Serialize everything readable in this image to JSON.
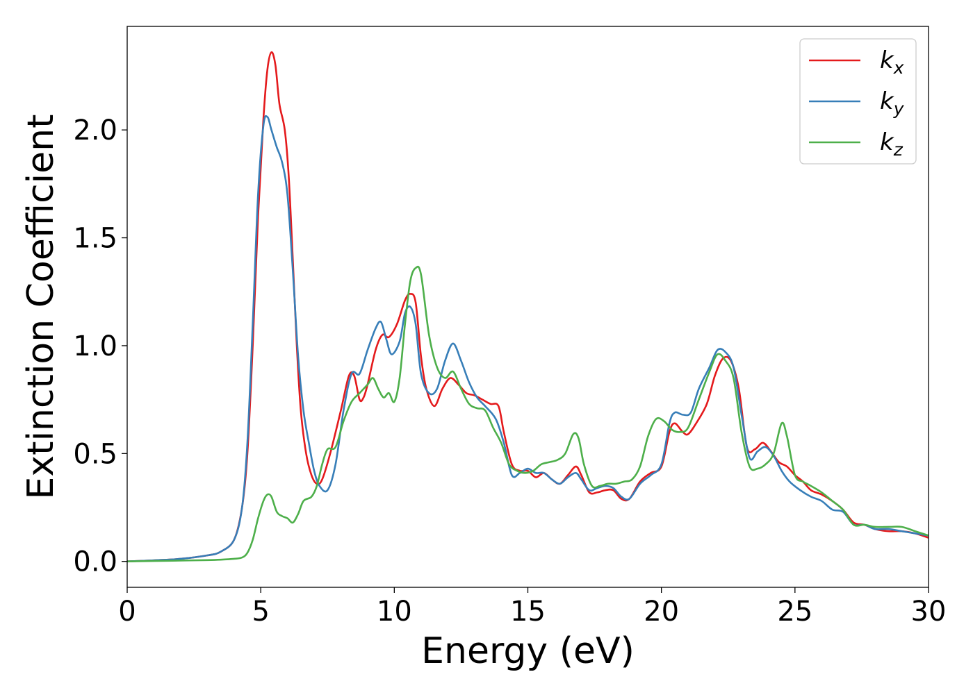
{
  "chart_data": {
    "type": "line",
    "title": "",
    "xlabel": "Energy (eV)",
    "ylabel": "Extinction Coefficient",
    "xlim": [
      0,
      30
    ],
    "ylim": [
      -0.12,
      2.48
    ],
    "xticks": [
      0,
      5,
      10,
      15,
      20,
      25,
      30
    ],
    "xtick_labels": [
      "0",
      "5",
      "10",
      "15",
      "20",
      "25",
      "30"
    ],
    "yticks": [
      0.0,
      0.5,
      1.0,
      1.5,
      2.0
    ],
    "ytick_labels": [
      "0.0",
      "0.5",
      "1.0",
      "1.5",
      "2.0"
    ],
    "grid": false,
    "legend": {
      "position": "top-right",
      "entries": [
        {
          "base": "k",
          "sub": "x"
        },
        {
          "base": "k",
          "sub": "y"
        },
        {
          "base": "k",
          "sub": "z"
        }
      ]
    },
    "series": [
      {
        "name": "k_x",
        "color": "#e41a1c",
        "points": [
          [
            0,
            0
          ],
          [
            1,
            0.005
          ],
          [
            2,
            0.012
          ],
          [
            3,
            0.028
          ],
          [
            3.5,
            0.045
          ],
          [
            4,
            0.1
          ],
          [
            4.3,
            0.25
          ],
          [
            4.5,
            0.5
          ],
          [
            4.7,
            1.0
          ],
          [
            4.9,
            1.6
          ],
          [
            5.1,
            2.05
          ],
          [
            5.25,
            2.28
          ],
          [
            5.4,
            2.36
          ],
          [
            5.55,
            2.3
          ],
          [
            5.7,
            2.12
          ],
          [
            5.9,
            2.0
          ],
          [
            6.05,
            1.78
          ],
          [
            6.2,
            1.4
          ],
          [
            6.35,
            1.0
          ],
          [
            6.5,
            0.7
          ],
          [
            6.7,
            0.5
          ],
          [
            6.9,
            0.4
          ],
          [
            7.1,
            0.36
          ],
          [
            7.3,
            0.38
          ],
          [
            7.6,
            0.5
          ],
          [
            8.0,
            0.7
          ],
          [
            8.3,
            0.86
          ],
          [
            8.5,
            0.86
          ],
          [
            8.7,
            0.75
          ],
          [
            8.85,
            0.76
          ],
          [
            9.0,
            0.82
          ],
          [
            9.3,
            0.98
          ],
          [
            9.55,
            1.05
          ],
          [
            9.8,
            1.04
          ],
          [
            10.1,
            1.1
          ],
          [
            10.4,
            1.21
          ],
          [
            10.6,
            1.24
          ],
          [
            10.8,
            1.2
          ],
          [
            11.0,
            0.95
          ],
          [
            11.2,
            0.8
          ],
          [
            11.5,
            0.72
          ],
          [
            11.8,
            0.8
          ],
          [
            12.1,
            0.85
          ],
          [
            12.4,
            0.82
          ],
          [
            12.7,
            0.78
          ],
          [
            13.0,
            0.77
          ],
          [
            13.3,
            0.75
          ],
          [
            13.6,
            0.73
          ],
          [
            13.9,
            0.72
          ],
          [
            14.1,
            0.6
          ],
          [
            14.4,
            0.45
          ],
          [
            14.7,
            0.42
          ],
          [
            15.0,
            0.42
          ],
          [
            15.3,
            0.39
          ],
          [
            15.6,
            0.41
          ],
          [
            15.9,
            0.38
          ],
          [
            16.2,
            0.36
          ],
          [
            16.5,
            0.4
          ],
          [
            16.8,
            0.44
          ],
          [
            17.0,
            0.4
          ],
          [
            17.3,
            0.32
          ],
          [
            17.6,
            0.32
          ],
          [
            17.9,
            0.33
          ],
          [
            18.2,
            0.33
          ],
          [
            18.5,
            0.29
          ],
          [
            18.8,
            0.29
          ],
          [
            19.2,
            0.37
          ],
          [
            19.6,
            0.41
          ],
          [
            20.0,
            0.44
          ],
          [
            20.3,
            0.6
          ],
          [
            20.5,
            0.64
          ],
          [
            20.8,
            0.6
          ],
          [
            21.0,
            0.59
          ],
          [
            21.3,
            0.64
          ],
          [
            21.7,
            0.73
          ],
          [
            22.0,
            0.86
          ],
          [
            22.3,
            0.94
          ],
          [
            22.6,
            0.93
          ],
          [
            22.9,
            0.8
          ],
          [
            23.2,
            0.53
          ],
          [
            23.5,
            0.52
          ],
          [
            23.8,
            0.55
          ],
          [
            24.1,
            0.51
          ],
          [
            24.4,
            0.46
          ],
          [
            24.7,
            0.44
          ],
          [
            25.0,
            0.4
          ],
          [
            25.3,
            0.37
          ],
          [
            25.6,
            0.33
          ],
          [
            26.0,
            0.31
          ],
          [
            26.4,
            0.28
          ],
          [
            26.8,
            0.24
          ],
          [
            27.2,
            0.18
          ],
          [
            27.6,
            0.17
          ],
          [
            28.0,
            0.15
          ],
          [
            28.5,
            0.14
          ],
          [
            29.0,
            0.14
          ],
          [
            29.5,
            0.13
          ],
          [
            30,
            0.11
          ]
        ]
      },
      {
        "name": "k_y",
        "color": "#377eb8",
        "points": [
          [
            0,
            0
          ],
          [
            1,
            0.005
          ],
          [
            2,
            0.012
          ],
          [
            3,
            0.028
          ],
          [
            3.5,
            0.045
          ],
          [
            4,
            0.1
          ],
          [
            4.3,
            0.25
          ],
          [
            4.5,
            0.55
          ],
          [
            4.7,
            1.1
          ],
          [
            4.9,
            1.7
          ],
          [
            5.1,
            2.02
          ],
          [
            5.25,
            2.06
          ],
          [
            5.4,
            2.0
          ],
          [
            5.6,
            1.92
          ],
          [
            5.8,
            1.85
          ],
          [
            6.0,
            1.7
          ],
          [
            6.2,
            1.35
          ],
          [
            6.4,
            0.95
          ],
          [
            6.6,
            0.7
          ],
          [
            6.8,
            0.55
          ],
          [
            7.0,
            0.42
          ],
          [
            7.2,
            0.35
          ],
          [
            7.5,
            0.33
          ],
          [
            7.8,
            0.45
          ],
          [
            8.1,
            0.7
          ],
          [
            8.4,
            0.87
          ],
          [
            8.7,
            0.87
          ],
          [
            9.0,
            0.98
          ],
          [
            9.3,
            1.08
          ],
          [
            9.5,
            1.11
          ],
          [
            9.7,
            1.03
          ],
          [
            9.9,
            0.96
          ],
          [
            10.2,
            1.02
          ],
          [
            10.4,
            1.15
          ],
          [
            10.6,
            1.18
          ],
          [
            10.8,
            1.1
          ],
          [
            11.0,
            0.87
          ],
          [
            11.3,
            0.78
          ],
          [
            11.6,
            0.8
          ],
          [
            11.9,
            0.93
          ],
          [
            12.2,
            1.01
          ],
          [
            12.5,
            0.93
          ],
          [
            12.8,
            0.83
          ],
          [
            13.1,
            0.76
          ],
          [
            13.4,
            0.72
          ],
          [
            13.8,
            0.66
          ],
          [
            14.1,
            0.55
          ],
          [
            14.4,
            0.4
          ],
          [
            14.7,
            0.41
          ],
          [
            15.0,
            0.43
          ],
          [
            15.3,
            0.41
          ],
          [
            15.6,
            0.41
          ],
          [
            15.9,
            0.38
          ],
          [
            16.2,
            0.36
          ],
          [
            16.5,
            0.39
          ],
          [
            16.8,
            0.41
          ],
          [
            17.0,
            0.38
          ],
          [
            17.3,
            0.33
          ],
          [
            17.6,
            0.34
          ],
          [
            17.9,
            0.35
          ],
          [
            18.2,
            0.34
          ],
          [
            18.5,
            0.3
          ],
          [
            18.8,
            0.29
          ],
          [
            19.2,
            0.36
          ],
          [
            19.6,
            0.4
          ],
          [
            20.0,
            0.45
          ],
          [
            20.3,
            0.64
          ],
          [
            20.5,
            0.69
          ],
          [
            20.8,
            0.68
          ],
          [
            21.1,
            0.69
          ],
          [
            21.4,
            0.8
          ],
          [
            21.8,
            0.9
          ],
          [
            22.1,
            0.98
          ],
          [
            22.4,
            0.97
          ],
          [
            22.7,
            0.9
          ],
          [
            23.0,
            0.68
          ],
          [
            23.3,
            0.48
          ],
          [
            23.6,
            0.51
          ],
          [
            23.9,
            0.53
          ],
          [
            24.2,
            0.49
          ],
          [
            24.5,
            0.42
          ],
          [
            24.8,
            0.37
          ],
          [
            25.2,
            0.33
          ],
          [
            25.6,
            0.3
          ],
          [
            26.0,
            0.28
          ],
          [
            26.4,
            0.24
          ],
          [
            26.8,
            0.23
          ],
          [
            27.2,
            0.17
          ],
          [
            27.6,
            0.17
          ],
          [
            28.0,
            0.15
          ],
          [
            28.5,
            0.15
          ],
          [
            29.0,
            0.14
          ],
          [
            29.5,
            0.13
          ],
          [
            30,
            0.12
          ]
        ]
      },
      {
        "name": "k_z",
        "color": "#4daf4a",
        "points": [
          [
            0,
            0
          ],
          [
            1,
            0.002
          ],
          [
            2,
            0.004
          ],
          [
            3,
            0.006
          ],
          [
            3.5,
            0.008
          ],
          [
            4,
            0.012
          ],
          [
            4.3,
            0.018
          ],
          [
            4.5,
            0.04
          ],
          [
            4.7,
            0.1
          ],
          [
            4.9,
            0.2
          ],
          [
            5.1,
            0.28
          ],
          [
            5.25,
            0.31
          ],
          [
            5.4,
            0.3
          ],
          [
            5.6,
            0.23
          ],
          [
            5.8,
            0.21
          ],
          [
            6.0,
            0.2
          ],
          [
            6.2,
            0.18
          ],
          [
            6.4,
            0.22
          ],
          [
            6.6,
            0.28
          ],
          [
            6.9,
            0.3
          ],
          [
            7.1,
            0.35
          ],
          [
            7.3,
            0.45
          ],
          [
            7.5,
            0.52
          ],
          [
            7.8,
            0.53
          ],
          [
            8.1,
            0.65
          ],
          [
            8.4,
            0.74
          ],
          [
            8.7,
            0.78
          ],
          [
            9.0,
            0.82
          ],
          [
            9.2,
            0.85
          ],
          [
            9.4,
            0.8
          ],
          [
            9.6,
            0.76
          ],
          [
            9.8,
            0.78
          ],
          [
            10.0,
            0.74
          ],
          [
            10.2,
            0.85
          ],
          [
            10.4,
            1.1
          ],
          [
            10.6,
            1.3
          ],
          [
            10.8,
            1.36
          ],
          [
            11.0,
            1.33
          ],
          [
            11.3,
            1.05
          ],
          [
            11.6,
            0.9
          ],
          [
            11.9,
            0.85
          ],
          [
            12.2,
            0.88
          ],
          [
            12.5,
            0.8
          ],
          [
            12.8,
            0.73
          ],
          [
            13.1,
            0.71
          ],
          [
            13.4,
            0.7
          ],
          [
            13.7,
            0.62
          ],
          [
            14.0,
            0.55
          ],
          [
            14.3,
            0.45
          ],
          [
            14.6,
            0.42
          ],
          [
            14.9,
            0.41
          ],
          [
            15.2,
            0.42
          ],
          [
            15.5,
            0.45
          ],
          [
            15.8,
            0.46
          ],
          [
            16.1,
            0.47
          ],
          [
            16.4,
            0.5
          ],
          [
            16.7,
            0.59
          ],
          [
            16.9,
            0.57
          ],
          [
            17.1,
            0.45
          ],
          [
            17.4,
            0.35
          ],
          [
            17.7,
            0.35
          ],
          [
            18.0,
            0.36
          ],
          [
            18.3,
            0.36
          ],
          [
            18.6,
            0.37
          ],
          [
            18.9,
            0.38
          ],
          [
            19.2,
            0.44
          ],
          [
            19.5,
            0.58
          ],
          [
            19.8,
            0.66
          ],
          [
            20.1,
            0.65
          ],
          [
            20.4,
            0.61
          ],
          [
            20.7,
            0.6
          ],
          [
            21.0,
            0.62
          ],
          [
            21.4,
            0.75
          ],
          [
            21.8,
            0.88
          ],
          [
            22.1,
            0.96
          ],
          [
            22.4,
            0.93
          ],
          [
            22.7,
            0.85
          ],
          [
            23.0,
            0.6
          ],
          [
            23.3,
            0.44
          ],
          [
            23.6,
            0.43
          ],
          [
            23.9,
            0.45
          ],
          [
            24.2,
            0.5
          ],
          [
            24.5,
            0.64
          ],
          [
            24.7,
            0.58
          ],
          [
            25.0,
            0.4
          ],
          [
            25.3,
            0.37
          ],
          [
            25.6,
            0.35
          ],
          [
            26.0,
            0.32
          ],
          [
            26.4,
            0.28
          ],
          [
            26.8,
            0.24
          ],
          [
            27.2,
            0.17
          ],
          [
            27.6,
            0.17
          ],
          [
            28.0,
            0.16
          ],
          [
            28.5,
            0.16
          ],
          [
            29.0,
            0.16
          ],
          [
            29.5,
            0.14
          ],
          [
            30,
            0.12
          ]
        ]
      }
    ]
  }
}
